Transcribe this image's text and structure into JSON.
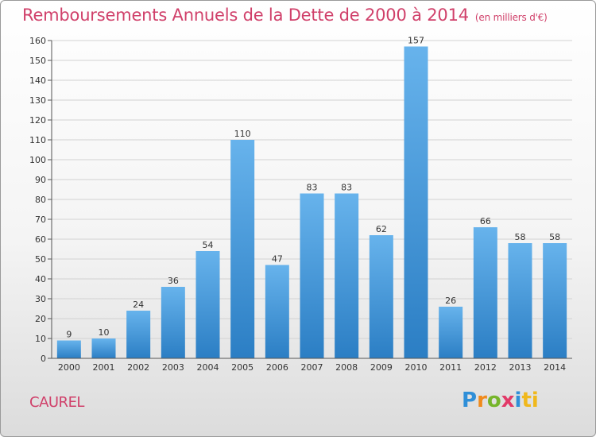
{
  "title": "Remboursements Annuels de la Dette de 2000 à 2014",
  "unit": "(en milliers d'€)",
  "place": "CAUREL",
  "logo": {
    "letters": [
      "P",
      "r",
      "o",
      "x",
      "i",
      "ti"
    ],
    "colors": [
      "#2f8fd8",
      "#f08a1c",
      "#76b52b",
      "#e23a68",
      "#2f8fd8",
      "#f0b81c"
    ]
  },
  "colors": {
    "bar_light": "#67b3ec",
    "bar_dark": "#2b7ec4",
    "text": "#d0406a"
  },
  "chart_data": {
    "type": "bar",
    "title": "Remboursements Annuels de la Dette de 2000 à 2014",
    "categories": [
      "2000",
      "2001",
      "2002",
      "2003",
      "2004",
      "2005",
      "2006",
      "2007",
      "2008",
      "2009",
      "2010",
      "2011",
      "2012",
      "2013",
      "2014"
    ],
    "values": [
      9,
      10,
      24,
      36,
      54,
      110,
      47,
      83,
      83,
      62,
      157,
      26,
      66,
      58,
      58
    ],
    "ylim": [
      0,
      160
    ],
    "yticks": [
      0,
      10,
      20,
      30,
      40,
      50,
      60,
      70,
      80,
      90,
      100,
      110,
      120,
      130,
      140,
      150,
      160
    ],
    "grid": true,
    "data_labels": true
  }
}
